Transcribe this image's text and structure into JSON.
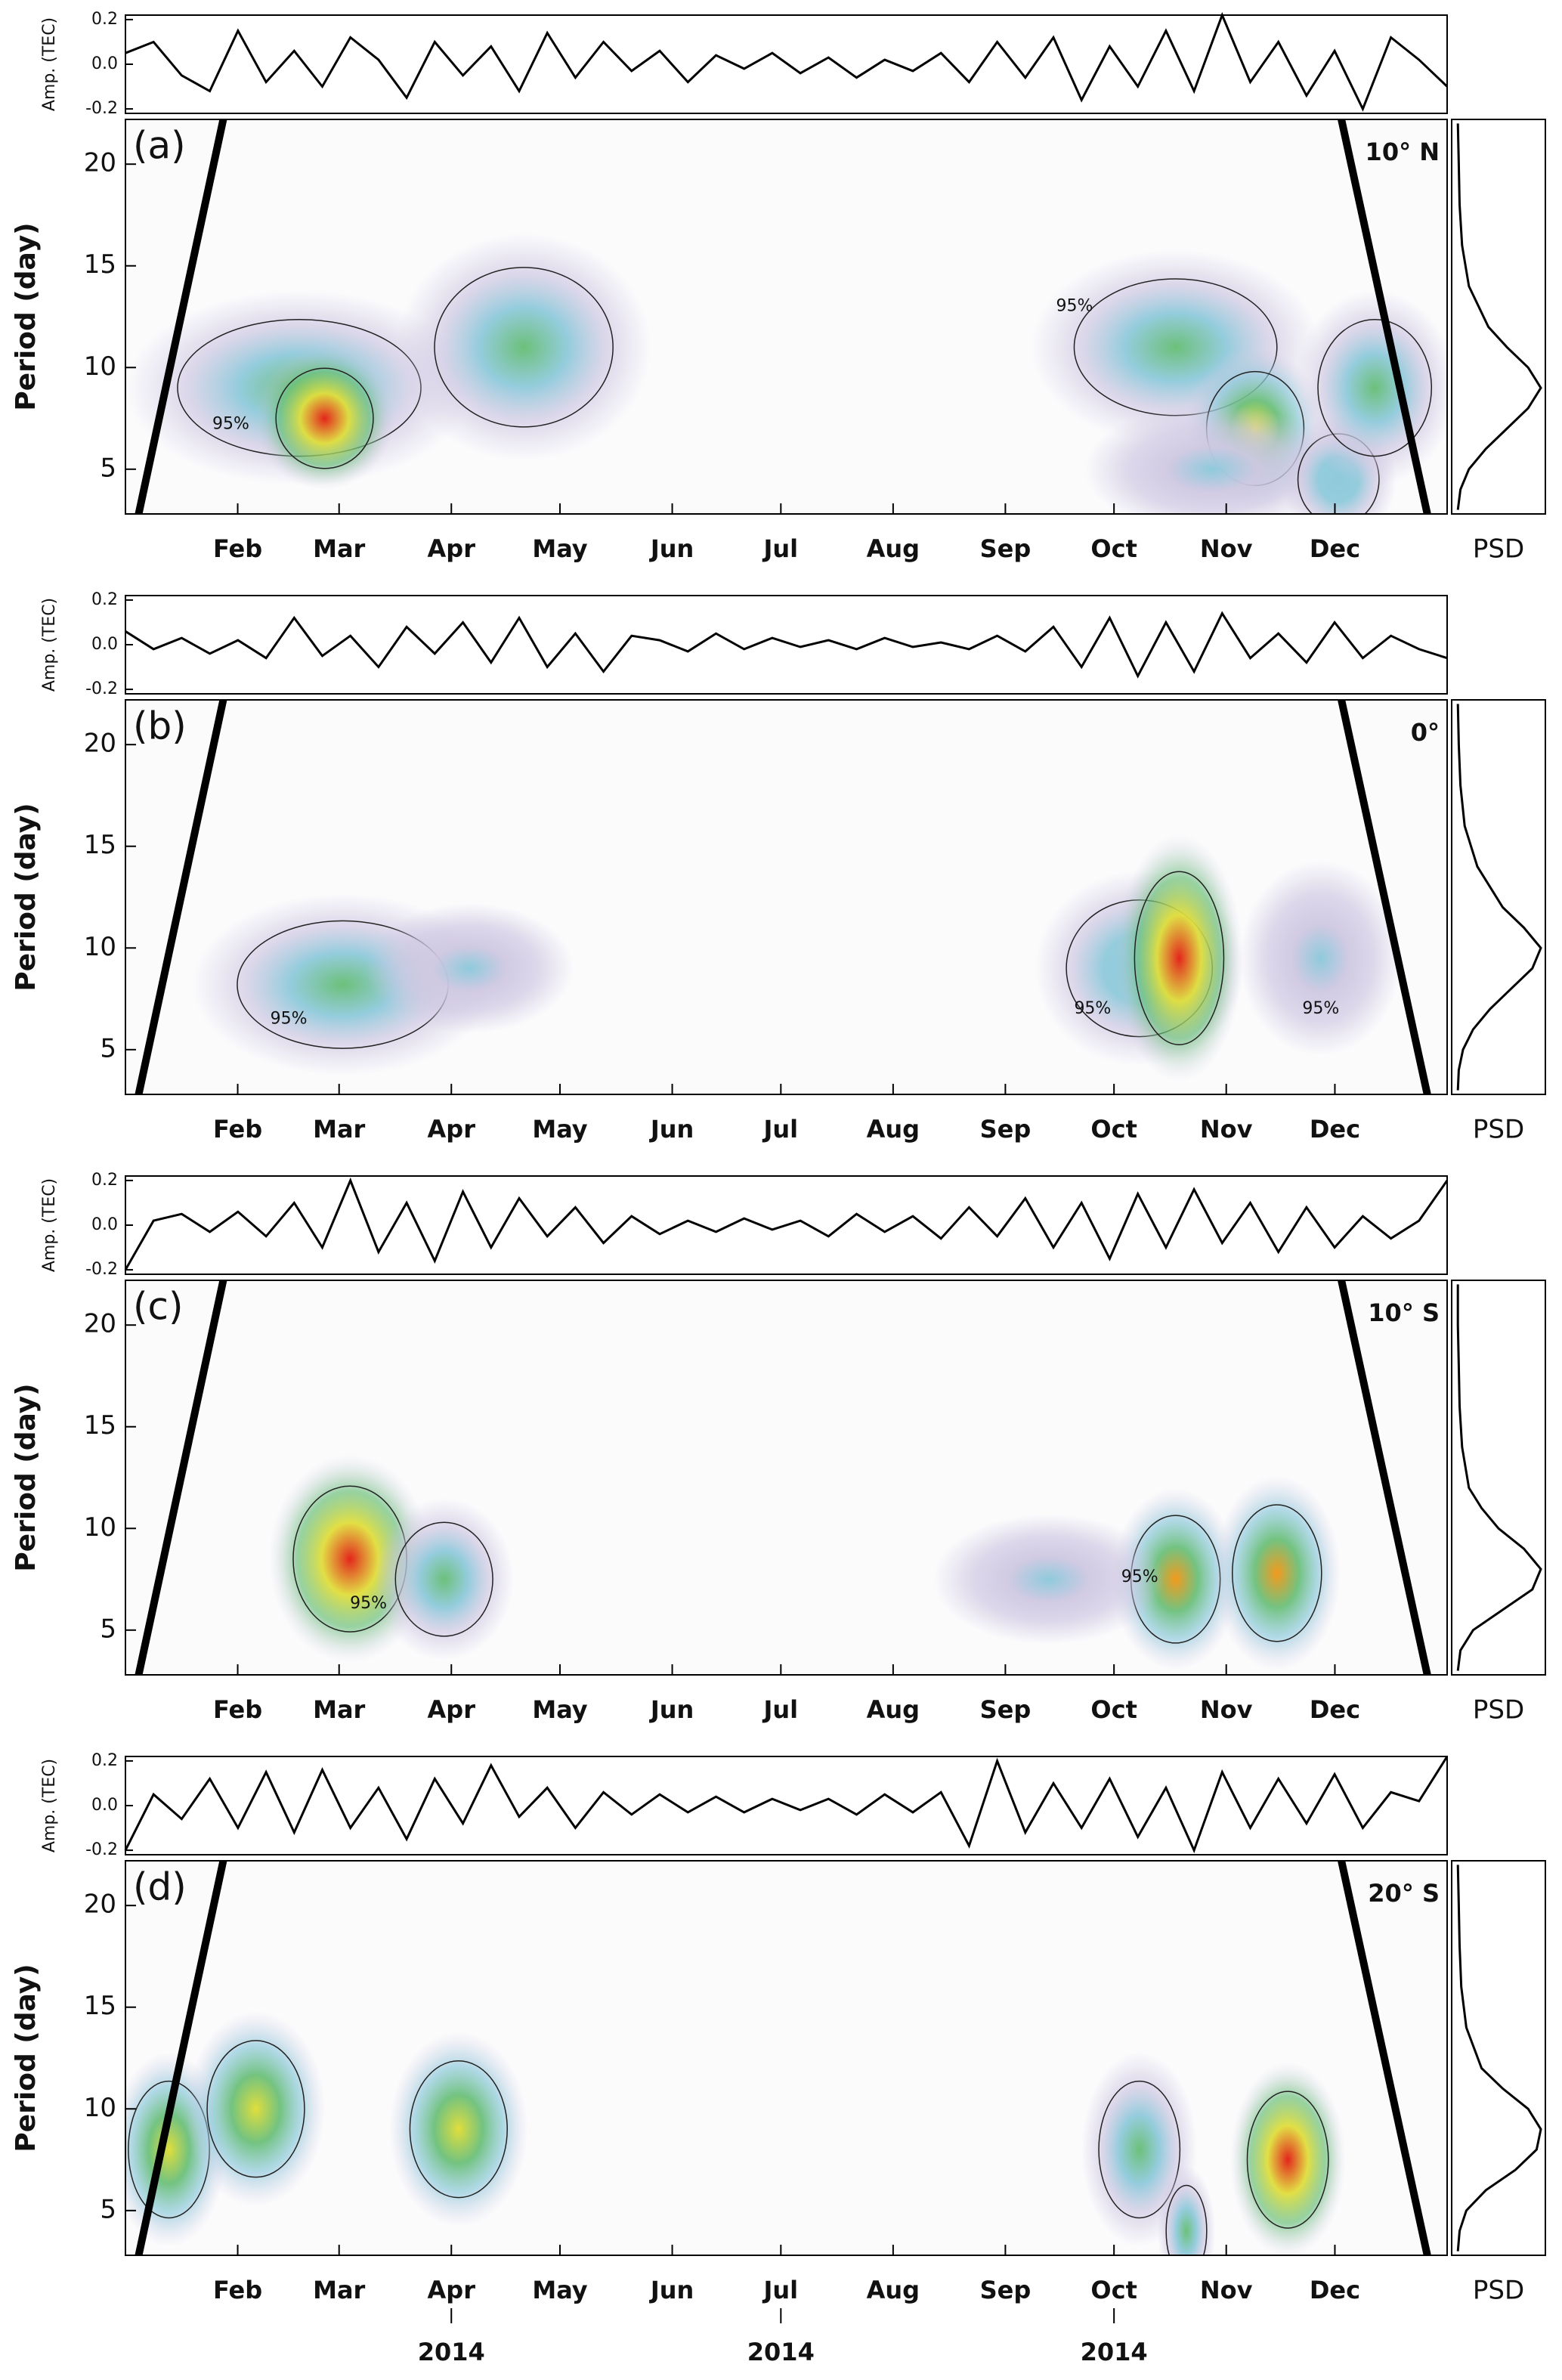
{
  "chart_data": [
    {
      "type": "wavelet",
      "panel_label": "(a)",
      "region_label": "10° N",
      "amp_label": "Amp. (TEC)",
      "amp_ylim": [
        -0.22,
        0.22
      ],
      "amp_yticks": [
        0.2,
        {
          "value": 0,
          "label": "0.0"
        },
        -0.2
      ],
      "amp_values": [
        0.05,
        0.1,
        -0.05,
        -0.12,
        0.15,
        -0.08,
        0.06,
        -0.1,
        0.12,
        0.02,
        -0.15,
        0.1,
        -0.05,
        0.08,
        -0.12,
        0.14,
        -0.06,
        0.1,
        -0.03,
        0.06,
        -0.08,
        0.04,
        -0.02,
        0.05,
        -0.04,
        0.03,
        -0.06,
        0.02,
        -0.03,
        0.05,
        -0.08,
        0.1,
        -0.06,
        0.12,
        -0.16,
        0.08,
        -0.1,
        0.15,
        -0.12,
        0.22,
        -0.08,
        0.1,
        -0.14,
        0.06,
        -0.2,
        0.12,
        0.02,
        -0.1
      ],
      "ylabel": "Period (day)",
      "ylim": [
        2.8,
        22.2
      ],
      "yticks": [
        5,
        10,
        15,
        20
      ],
      "xlim": [
        0,
        365
      ],
      "xticks": [
        {
          "value": 31,
          "label": "Feb"
        },
        {
          "value": 59,
          "label": "Mar"
        },
        {
          "value": 90,
          "label": "Apr"
        },
        {
          "value": 120,
          "label": "May"
        },
        {
          "value": 151,
          "label": "Jun"
        },
        {
          "value": 181,
          "label": "Jul"
        },
        {
          "value": 212,
          "label": "Aug"
        },
        {
          "value": 243,
          "label": "Sep"
        },
        {
          "value": 273,
          "label": "Oct"
        },
        {
          "value": 304,
          "label": "Nov"
        },
        {
          "value": 334,
          "label": "Dec"
        }
      ],
      "hotspots": [
        {
          "x": 48,
          "period": 9,
          "power": 0.45,
          "dx": 30,
          "dp": 3
        },
        {
          "x": 55,
          "period": 7.5,
          "power": 1.0,
          "dx": 12,
          "dp": 2.2
        },
        {
          "x": 110,
          "period": 11,
          "power": 0.42,
          "dx": 22,
          "dp": 3.5
        },
        {
          "x": 290,
          "period": 11,
          "power": 0.42,
          "dx": 25,
          "dp": 3
        },
        {
          "x": 312,
          "period": 7,
          "power": 0.7,
          "dx": 12,
          "dp": 2.5
        },
        {
          "x": 300,
          "period": 5,
          "power": 0.3,
          "dx": 22,
          "dp": 2
        },
        {
          "x": 335,
          "period": 4.5,
          "power": 0.4,
          "dx": 10,
          "dp": 2
        },
        {
          "x": 345,
          "period": 9,
          "power": 0.45,
          "dx": 14,
          "dp": 3
        }
      ],
      "contour_labels": [
        {
          "label": "95%",
          "x": 24,
          "period": 7.2
        },
        {
          "label": "95%",
          "x": 257,
          "period": 13
        }
      ],
      "psd_label": "PSD",
      "psd_periods": [
        3,
        4,
        5,
        6,
        7,
        8,
        9,
        10,
        11,
        12,
        14,
        16,
        18,
        20,
        22
      ],
      "psd_values": [
        0.02,
        0.05,
        0.15,
        0.35,
        0.6,
        0.85,
        1.0,
        0.85,
        0.6,
        0.38,
        0.15,
        0.07,
        0.04,
        0.03,
        0.02
      ]
    },
    {
      "type": "wavelet",
      "panel_label": "(b)",
      "region_label": "0°",
      "amp_label": "Amp. (TEC)",
      "amp_ylim": [
        -0.22,
        0.22
      ],
      "amp_yticks": [
        0.2,
        {
          "value": 0,
          "label": "0.0"
        },
        -0.2
      ],
      "amp_values": [
        0.06,
        -0.02,
        0.03,
        -0.04,
        0.02,
        -0.06,
        0.12,
        -0.05,
        0.04,
        -0.1,
        0.08,
        -0.04,
        0.1,
        -0.08,
        0.12,
        -0.1,
        0.05,
        -0.12,
        0.04,
        0.02,
        -0.03,
        0.05,
        -0.02,
        0.03,
        -0.01,
        0.02,
        -0.02,
        0.03,
        -0.01,
        0.01,
        -0.02,
        0.04,
        -0.03,
        0.08,
        -0.1,
        0.12,
        -0.14,
        0.1,
        -0.12,
        0.14,
        -0.06,
        0.05,
        -0.08,
        0.1,
        -0.06,
        0.04,
        -0.02,
        -0.06
      ],
      "ylabel": "Period (day)",
      "ylim": [
        2.8,
        22.2
      ],
      "yticks": [
        5,
        10,
        15,
        20
      ],
      "xlim": [
        0,
        365
      ],
      "xticks": [
        {
          "value": 31,
          "label": "Feb"
        },
        {
          "value": 59,
          "label": "Mar"
        },
        {
          "value": 90,
          "label": "Apr"
        },
        {
          "value": 120,
          "label": "May"
        },
        {
          "value": 151,
          "label": "Jun"
        },
        {
          "value": 181,
          "label": "Jul"
        },
        {
          "value": 212,
          "label": "Aug"
        },
        {
          "value": 243,
          "label": "Sep"
        },
        {
          "value": 273,
          "label": "Oct"
        },
        {
          "value": 304,
          "label": "Nov"
        },
        {
          "value": 334,
          "label": "Dec"
        }
      ],
      "hotspots": [
        {
          "x": 60,
          "period": 8.2,
          "power": 0.52,
          "dx": 26,
          "dp": 2.8
        },
        {
          "x": 95,
          "period": 9,
          "power": 0.3,
          "dx": 18,
          "dp": 2
        },
        {
          "x": 280,
          "period": 9,
          "power": 0.4,
          "dx": 18,
          "dp": 3
        },
        {
          "x": 291,
          "period": 9.5,
          "power": 1.0,
          "dx": 11,
          "dp": 3.8
        },
        {
          "x": 330,
          "period": 9.5,
          "power": 0.3,
          "dx": 14,
          "dp": 3
        }
      ],
      "contour_labels": [
        {
          "label": "95%",
          "x": 40,
          "period": 6.5
        },
        {
          "label": "95%",
          "x": 262,
          "period": 7
        },
        {
          "label": "95%",
          "x": 325,
          "period": 7
        }
      ],
      "psd_label": "PSD",
      "psd_periods": [
        3,
        4,
        5,
        6,
        7,
        8,
        9,
        10,
        11,
        12,
        14,
        16,
        18,
        20,
        22
      ],
      "psd_values": [
        0.02,
        0.03,
        0.08,
        0.2,
        0.4,
        0.65,
        0.9,
        1.0,
        0.8,
        0.55,
        0.25,
        0.1,
        0.05,
        0.03,
        0.02
      ]
    },
    {
      "type": "wavelet",
      "panel_label": "(c)",
      "region_label": "10° S",
      "amp_label": "Amp. (TEC)",
      "amp_ylim": [
        -0.22,
        0.22
      ],
      "amp_yticks": [
        0.2,
        {
          "value": 0,
          "label": "0.0"
        },
        -0.2
      ],
      "amp_values": [
        -0.2,
        0.02,
        0.05,
        -0.03,
        0.06,
        -0.05,
        0.1,
        -0.1,
        0.2,
        -0.12,
        0.1,
        -0.16,
        0.15,
        -0.1,
        0.12,
        -0.05,
        0.08,
        -0.08,
        0.04,
        -0.04,
        0.02,
        -0.03,
        0.03,
        -0.02,
        0.02,
        -0.05,
        0.05,
        -0.03,
        0.04,
        -0.06,
        0.08,
        -0.05,
        0.12,
        -0.1,
        0.1,
        -0.15,
        0.14,
        -0.1,
        0.16,
        -0.08,
        0.1,
        -0.12,
        0.08,
        -0.1,
        0.04,
        -0.06,
        0.02,
        0.2
      ],
      "ylabel": "Period (day)",
      "ylim": [
        2.8,
        22.2
      ],
      "yticks": [
        5,
        10,
        15,
        20
      ],
      "xlim": [
        0,
        365
      ],
      "xticks": [
        {
          "value": 31,
          "label": "Feb"
        },
        {
          "value": 59,
          "label": "Mar"
        },
        {
          "value": 90,
          "label": "Apr"
        },
        {
          "value": 120,
          "label": "May"
        },
        {
          "value": 151,
          "label": "Jun"
        },
        {
          "value": 181,
          "label": "Jul"
        },
        {
          "value": 212,
          "label": "Aug"
        },
        {
          "value": 243,
          "label": "Sep"
        },
        {
          "value": 273,
          "label": "Oct"
        },
        {
          "value": 304,
          "label": "Nov"
        },
        {
          "value": 334,
          "label": "Dec"
        }
      ],
      "hotspots": [
        {
          "x": 62,
          "period": 8.5,
          "power": 1.0,
          "dx": 14,
          "dp": 3.2
        },
        {
          "x": 88,
          "period": 7.5,
          "power": 0.42,
          "dx": 12,
          "dp": 2.5
        },
        {
          "x": 290,
          "period": 7.5,
          "power": 0.72,
          "dx": 11,
          "dp": 2.8
        },
        {
          "x": 318,
          "period": 7.8,
          "power": 0.72,
          "dx": 11,
          "dp": 3
        },
        {
          "x": 255,
          "period": 7.5,
          "power": 0.28,
          "dx": 20,
          "dp": 2
        }
      ],
      "contour_labels": [
        {
          "label": "95%",
          "x": 62,
          "period": 6.3
        },
        {
          "label": "95%",
          "x": 275,
          "period": 7.6
        }
      ],
      "psd_label": "PSD",
      "psd_periods": [
        3,
        4,
        5,
        6,
        7,
        8,
        9,
        10,
        11,
        12,
        14,
        16,
        18,
        20,
        22
      ],
      "psd_values": [
        0.02,
        0.05,
        0.2,
        0.55,
        0.9,
        1.0,
        0.8,
        0.5,
        0.3,
        0.15,
        0.07,
        0.04,
        0.03,
        0.02,
        0.02
      ]
    },
    {
      "type": "wavelet",
      "panel_label": "(d)",
      "region_label": "20° S",
      "amp_label": "Amp. (TEC)",
      "amp_ylim": [
        -0.22,
        0.22
      ],
      "amp_yticks": [
        0.2,
        {
          "value": 0,
          "label": "0.0"
        },
        -0.2
      ],
      "amp_values": [
        -0.2,
        0.05,
        -0.06,
        0.12,
        -0.1,
        0.15,
        -0.12,
        0.16,
        -0.1,
        0.08,
        -0.15,
        0.12,
        -0.08,
        0.18,
        -0.05,
        0.08,
        -0.1,
        0.06,
        -0.04,
        0.05,
        -0.03,
        0.04,
        -0.03,
        0.03,
        -0.02,
        0.03,
        -0.04,
        0.05,
        -0.03,
        0.06,
        -0.18,
        0.2,
        -0.12,
        0.1,
        -0.1,
        0.12,
        -0.14,
        0.08,
        -0.2,
        0.15,
        -0.1,
        0.12,
        -0.08,
        0.14,
        -0.1,
        0.06,
        0.02,
        0.22
      ],
      "ylabel": "Period (day)",
      "ylim": [
        2.8,
        22.2
      ],
      "yticks": [
        5,
        10,
        15,
        20
      ],
      "xlim": [
        0,
        365
      ],
      "xticks": [
        {
          "value": 31,
          "label": "Feb"
        },
        {
          "value": 59,
          "label": "Mar"
        },
        {
          "value": 90,
          "label": "Apr"
        },
        {
          "value": 120,
          "label": "May"
        },
        {
          "value": 151,
          "label": "Jun"
        },
        {
          "value": 181,
          "label": "Jul"
        },
        {
          "value": 212,
          "label": "Aug"
        },
        {
          "value": 243,
          "label": "Sep"
        },
        {
          "value": 273,
          "label": "Oct"
        },
        {
          "value": 304,
          "label": "Nov"
        },
        {
          "value": 334,
          "label": "Dec"
        }
      ],
      "year_labels": [
        {
          "value": 90,
          "label": "2014"
        },
        {
          "value": 181,
          "label": "2014"
        },
        {
          "value": 273,
          "label": "2014"
        }
      ],
      "hotspots": [
        {
          "x": 12,
          "period": 8,
          "power": 0.6,
          "dx": 10,
          "dp": 3
        },
        {
          "x": 36,
          "period": 10,
          "power": 0.62,
          "dx": 12,
          "dp": 3
        },
        {
          "x": 92,
          "period": 9,
          "power": 0.58,
          "dx": 12,
          "dp": 3
        },
        {
          "x": 280,
          "period": 8,
          "power": 0.45,
          "dx": 10,
          "dp": 3
        },
        {
          "x": 293,
          "period": 4,
          "power": 0.5,
          "dx": 5,
          "dp": 2
        },
        {
          "x": 321,
          "period": 7.5,
          "power": 1.0,
          "dx": 10,
          "dp": 3
        }
      ],
      "contour_labels": [],
      "psd_label": "PSD",
      "psd_periods": [
        3,
        4,
        5,
        6,
        7,
        8,
        9,
        10,
        11,
        12,
        14,
        16,
        18,
        20,
        22
      ],
      "psd_values": [
        0.02,
        0.04,
        0.12,
        0.35,
        0.7,
        0.95,
        1.0,
        0.85,
        0.55,
        0.3,
        0.12,
        0.06,
        0.04,
        0.03,
        0.02
      ]
    }
  ]
}
